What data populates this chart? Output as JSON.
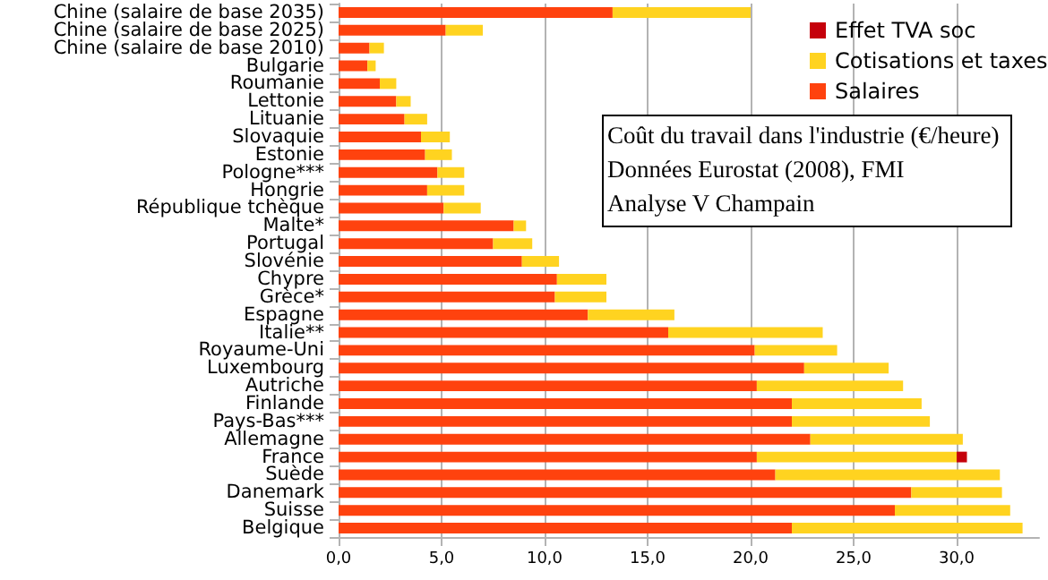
{
  "chart_data": {
    "type": "bar",
    "orientation": "horizontal",
    "stacked": true,
    "categories": [
      "Chine (salaire de base 2035)",
      "Chine (salaire de base 2025)",
      "Chine (salaire de base 2010)",
      "Bulgarie",
      "Roumanie",
      "Lettonie",
      "Lituanie",
      "Slovaquie",
      "Estonie",
      "Pologne***",
      "Hongrie",
      "République tchèque",
      "Malte*",
      "Portugal",
      "Slovénie",
      "Chypre",
      "Grèce*",
      "Espagne",
      "Italie**",
      "Royaume-Uni",
      "Luxembourg",
      "Autriche",
      "Finlande",
      "Pays-Bas***",
      "Allemagne",
      "France",
      "Suède",
      "Danemark",
      "Suisse",
      "Belgique"
    ],
    "series": [
      {
        "name": "Salaires",
        "color": "#ff420e",
        "values": [
          13.3,
          5.2,
          1.5,
          1.4,
          2.0,
          2.8,
          3.2,
          4.0,
          4.2,
          4.8,
          4.3,
          5.1,
          8.5,
          7.5,
          8.9,
          10.6,
          10.5,
          12.1,
          16.0,
          20.2,
          22.6,
          20.3,
          22.0,
          22.0,
          22.9,
          20.3,
          21.2,
          27.8,
          27.0,
          22.0
        ]
      },
      {
        "name": "Cotisations et taxes",
        "color": "#ffd320",
        "values": [
          6.7,
          1.8,
          0.7,
          0.4,
          0.8,
          0.7,
          1.1,
          1.4,
          1.3,
          1.3,
          1.8,
          1.8,
          0.6,
          1.9,
          1.8,
          2.4,
          2.5,
          4.2,
          7.5,
          4.0,
          4.1,
          7.1,
          6.3,
          6.7,
          7.4,
          9.7,
          10.9,
          4.4,
          5.6,
          11.2
        ]
      },
      {
        "name": "Effet TVA soc",
        "color": "#c5000b",
        "values": [
          null,
          null,
          null,
          null,
          null,
          null,
          null,
          null,
          null,
          null,
          null,
          null,
          null,
          null,
          null,
          null,
          null,
          null,
          null,
          null,
          null,
          null,
          null,
          null,
          null,
          0.5,
          null,
          null,
          null,
          null
        ]
      }
    ],
    "xlim": [
      0,
      34
    ],
    "xticks": [
      {
        "value": 0,
        "label": "0,0"
      },
      {
        "value": 5,
        "label": "5,0"
      },
      {
        "value": 10,
        "label": "10,0"
      },
      {
        "value": 15,
        "label": "15,0"
      },
      {
        "value": 20,
        "label": "20,0"
      },
      {
        "value": 25,
        "label": "25,0"
      },
      {
        "value": 30,
        "label": "30,0"
      }
    ],
    "grid": "x",
    "legend": "top right",
    "annotations": [
      "Coût du travail dans l'industrie (€/heure)",
      "Données Eurostat (2008), FMI",
      "Analyse V Champain"
    ]
  }
}
